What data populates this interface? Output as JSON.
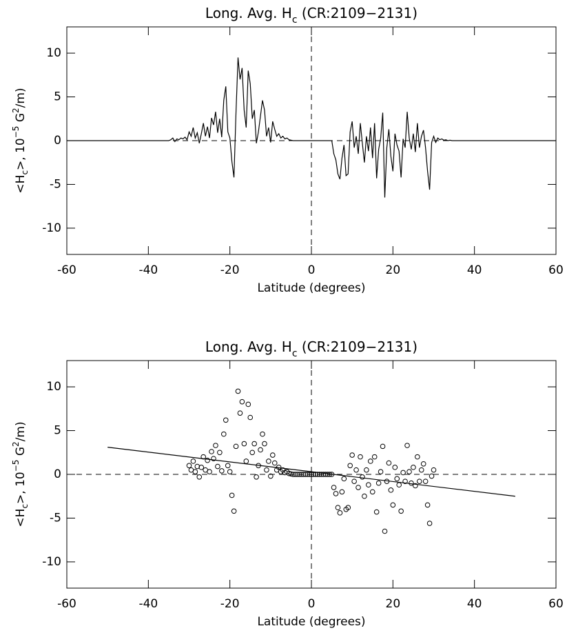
{
  "chart_data": [
    {
      "type": "line",
      "title_parts": [
        "Long. Avg. H",
        "c",
        " (CR:2109−2131)"
      ],
      "xlabel": "Latitude (degrees)",
      "ylabel_parts": [
        "<H",
        "c",
        ">, 10",
        "−5",
        " G",
        "2",
        "/m)"
      ],
      "color": "#000000",
      "xlim": [
        -60,
        60
      ],
      "xticks": [
        -60,
        -40,
        -20,
        0,
        20,
        40,
        60
      ],
      "ylim": [
        -13,
        13
      ],
      "yticks": [
        -10,
        -5,
        0,
        5,
        10
      ],
      "hline": 0,
      "vline": 0,
      "x": [
        -60,
        -35,
        -34.5,
        -34,
        -33.5,
        -33,
        -32.5,
        -32,
        -31.5,
        -31,
        -30.5,
        -30,
        -29.5,
        -29,
        -28.5,
        -28,
        -27.5,
        -27,
        -26.5,
        -26,
        -25.5,
        -25,
        -24.5,
        -24,
        -23.5,
        -23,
        -22.5,
        -22,
        -21.5,
        -21,
        -20.5,
        -20,
        -19.5,
        -19,
        -18.5,
        -18,
        -17.5,
        -17,
        -16.5,
        -16,
        -15.5,
        -15,
        -14.5,
        -14,
        -13.5,
        -13,
        -12.5,
        -12,
        -11.5,
        -11,
        -10.5,
        -10,
        -9.5,
        -9,
        -8.5,
        -8,
        -7.5,
        -7,
        -6.5,
        -6,
        -5.5,
        -5,
        -4.5,
        -4,
        -3.5,
        -3,
        -2.5,
        -2,
        -1.5,
        -1,
        -0.5,
        0,
        0.5,
        1,
        1.5,
        2,
        2.5,
        3,
        3.5,
        4,
        4.5,
        5,
        5.5,
        6,
        6.5,
        7,
        7.5,
        8,
        8.5,
        9,
        9.5,
        10,
        10.5,
        11,
        11.5,
        12,
        12.5,
        13,
        13.5,
        14,
        14.5,
        15,
        15.5,
        16,
        16.5,
        17,
        17.5,
        18,
        18.5,
        19,
        19.5,
        20,
        20.5,
        21,
        21.5,
        22,
        22.5,
        23,
        23.5,
        24,
        24.5,
        25,
        25.5,
        26,
        26.5,
        27,
        27.5,
        28,
        28.5,
        29,
        29.5,
        30,
        30.5,
        31,
        31.5,
        32,
        32.5,
        33,
        33.5,
        34,
        34.5,
        35,
        60
      ],
      "values": [
        0,
        0,
        0.1,
        0.3,
        -0.1,
        0.2,
        0.1,
        0.3,
        0.2,
        0.4,
        0.1,
        1.0,
        0.5,
        1.5,
        0.3,
        0.9,
        -0.3,
        0.8,
        2.0,
        0.5,
        1.6,
        0.3,
        2.6,
        1.8,
        3.3,
        0.9,
        2.5,
        0.4,
        4.6,
        6.2,
        1.0,
        0.3,
        -2.4,
        -4.2,
        3.2,
        9.5,
        7.0,
        8.3,
        3.5,
        1.5,
        8.0,
        6.5,
        2.5,
        3.5,
        -0.3,
        1.0,
        2.8,
        4.6,
        3.5,
        0.5,
        1.5,
        -0.2,
        2.2,
        1.3,
        0.5,
        0.8,
        0.3,
        0.5,
        0.2,
        0.3,
        0.1,
        0.05,
        0,
        0,
        0,
        0,
        0,
        0,
        0,
        0,
        0,
        0,
        0,
        0,
        0,
        0,
        0,
        0,
        0,
        0,
        0,
        0,
        -1.5,
        -2.2,
        -3.8,
        -4.4,
        -2.0,
        -0.5,
        -4.0,
        -3.8,
        1.0,
        2.2,
        -0.8,
        0.5,
        -1.5,
        2.0,
        -0.3,
        -2.5,
        0.5,
        -1.2,
        1.5,
        -2.0,
        2.0,
        -4.3,
        -1.0,
        0.3,
        3.2,
        -6.5,
        -0.8,
        1.3,
        -1.8,
        -3.5,
        0.8,
        -0.5,
        -1.2,
        -4.2,
        0.2,
        -0.8,
        3.3,
        0.3,
        -1.0,
        0.8,
        -1.3,
        2.0,
        -0.8,
        0.5,
        1.2,
        -0.8,
        -3.5,
        -5.6,
        -0.2,
        0.5,
        -0.2,
        0.3,
        0.1,
        0.2,
        0.05,
        0.1,
        0,
        0.05,
        0,
        0,
        0
      ]
    },
    {
      "type": "scatter",
      "title_parts": [
        "Long. Avg. H",
        "c",
        " (CR:2109−2131)"
      ],
      "xlabel": "Latitude (degrees)",
      "ylabel_parts": [
        "<H",
        "c",
        ">, 10",
        "−5",
        " G",
        "2",
        "/m)"
      ],
      "color": "#000000",
      "xlim": [
        -60,
        60
      ],
      "xticks": [
        -60,
        -40,
        -20,
        0,
        20,
        40,
        60
      ],
      "ylim": [
        -13,
        13
      ],
      "yticks": [
        -10,
        -5,
        0,
        5,
        10
      ],
      "hline": 0,
      "vline": 0,
      "fit": {
        "x": [
          -50,
          50
        ],
        "values": [
          3.1,
          -2.5
        ]
      },
      "x": [
        -30,
        -29.5,
        -29,
        -28.5,
        -28,
        -27.5,
        -27,
        -26.5,
        -26,
        -25.5,
        -25,
        -24.5,
        -24,
        -23.5,
        -23,
        -22.5,
        -22,
        -21.5,
        -21,
        -20.5,
        -20,
        -19.5,
        -19,
        -18.5,
        -18,
        -17.5,
        -17,
        -16.5,
        -16,
        -15.5,
        -15,
        -14.5,
        -14,
        -13.5,
        -13,
        -12.5,
        -12,
        -11.5,
        -11,
        -10.5,
        -10,
        -9.5,
        -9,
        -8.5,
        -8,
        -7.5,
        -7,
        -6.5,
        -6,
        -5.5,
        -5,
        -4.5,
        -4,
        -3.5,
        -3,
        -2.5,
        -2,
        -1.5,
        -1,
        -0.5,
        0,
        0.5,
        1,
        1.5,
        2,
        2.5,
        3,
        3.5,
        4,
        4.5,
        5,
        5.5,
        6,
        6.5,
        7,
        7.5,
        8,
        8.5,
        9,
        9.5,
        10,
        10.5,
        11,
        11.5,
        12,
        12.5,
        13,
        13.5,
        14,
        14.5,
        15,
        15.5,
        16,
        16.5,
        17,
        17.5,
        18,
        18.5,
        19,
        19.5,
        20,
        20.5,
        21,
        21.5,
        22,
        22.5,
        23,
        23.5,
        24,
        24.5,
        25,
        25.5,
        26,
        26.5,
        27,
        27.5,
        28,
        28.5,
        29,
        29.5,
        30
      ],
      "values": [
        1.0,
        0.5,
        1.5,
        0.3,
        0.9,
        -0.3,
        0.8,
        2.0,
        0.5,
        1.6,
        0.3,
        2.6,
        1.8,
        3.3,
        0.9,
        2.5,
        0.4,
        4.6,
        6.2,
        1.0,
        0.3,
        -2.4,
        -4.2,
        3.2,
        9.5,
        7.0,
        8.3,
        3.5,
        1.5,
        8.0,
        6.5,
        2.5,
        3.5,
        -0.3,
        1.0,
        2.8,
        4.6,
        3.5,
        0.5,
        1.5,
        -0.2,
        2.2,
        1.3,
        0.5,
        0.8,
        0.3,
        0.5,
        0.2,
        0.3,
        0.1,
        0.05,
        0,
        0,
        0,
        0,
        0,
        0,
        0,
        0,
        0,
        0,
        0,
        0,
        0,
        0,
        0,
        0,
        0,
        0,
        0,
        0,
        -1.5,
        -2.2,
        -3.8,
        -4.4,
        -2.0,
        -0.5,
        -4.0,
        -3.8,
        1.0,
        2.2,
        -0.8,
        0.5,
        -1.5,
        2.0,
        -0.3,
        -2.5,
        0.5,
        -1.2,
        1.5,
        -2.0,
        2.0,
        -4.3,
        -1.0,
        0.3,
        3.2,
        -6.5,
        -0.8,
        1.3,
        -1.8,
        -3.5,
        0.8,
        -0.5,
        -1.2,
        -4.2,
        0.2,
        -0.8,
        3.3,
        0.3,
        -1.0,
        0.8,
        -1.3,
        2.0,
        -0.8,
        0.5,
        1.2,
        -0.8,
        -3.5,
        -5.6,
        -0.2,
        0.5
      ]
    }
  ]
}
